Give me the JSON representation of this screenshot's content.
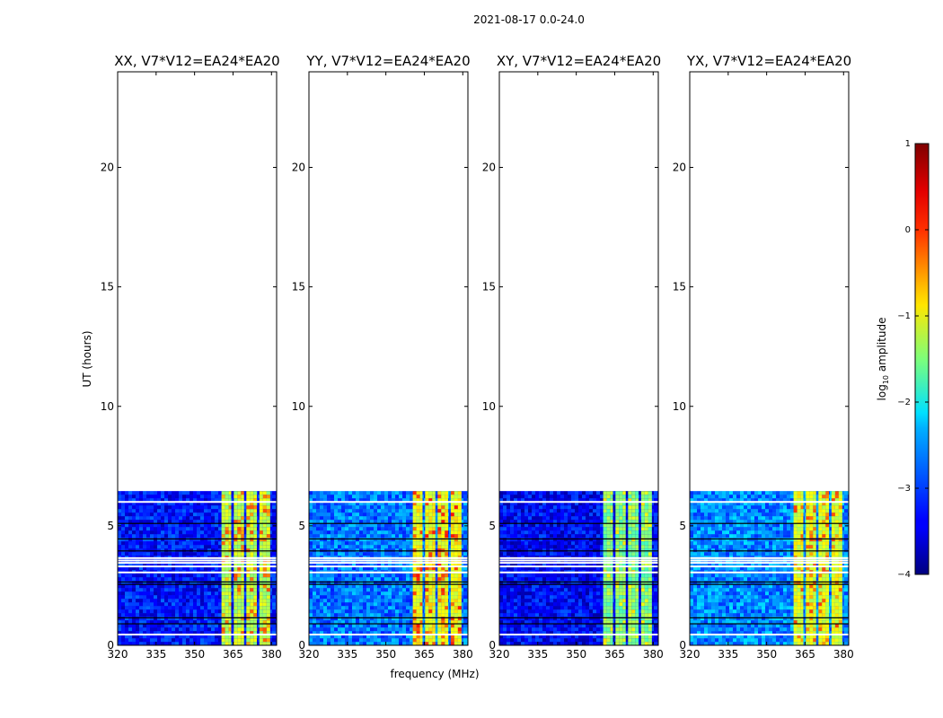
{
  "chart_data": {
    "type": "heatmap",
    "suptitle": "2021-08-17 0.0-24.0",
    "xlabel": "frequency (MHz)",
    "ylabel": "UT (hours)",
    "xlim": [
      320,
      382
    ],
    "ylim": [
      0,
      24
    ],
    "xticks": [
      320,
      335,
      350,
      365,
      380
    ],
    "yticks": [
      0,
      5,
      10,
      15,
      20
    ],
    "data_time_range": [
      0,
      6.45
    ],
    "bright_band_mhz": [
      360.5,
      379.5
    ],
    "bright_subbands_mhz": [
      [
        360.5,
        364.3
      ],
      [
        365.3,
        369.3
      ],
      [
        370.2,
        374.3
      ],
      [
        375.3,
        379.5
      ]
    ],
    "black_gap_times_hours": [
      0.9,
      1.15,
      2.55,
      2.65,
      3.95,
      4.45,
      5.1
    ],
    "white_gap_times_hours": [
      0.45,
      3.05,
      3.3,
      3.45,
      3.55,
      3.65,
      6.0
    ],
    "panels": [
      {
        "title": "XX, V7*V12=EA24*EA20",
        "background_log_amp": -3.3,
        "band_log_amp": -1.2,
        "band_peak_log_amp": -0.3
      },
      {
        "title": "YY, V7*V12=EA24*EA20",
        "background_log_amp": -2.8,
        "band_log_amp": -0.9,
        "band_peak_log_amp": 0.0
      },
      {
        "title": "XY, V7*V12=EA24*EA20",
        "background_log_amp": -3.4,
        "band_log_amp": -1.5,
        "band_peak_log_amp": -1.0
      },
      {
        "title": "YX, V7*V12=EA24*EA20",
        "background_log_amp": -2.7,
        "band_log_amp": -1.0,
        "band_peak_log_amp": -0.2
      }
    ],
    "colorbar": {
      "label_prefix": "log",
      "label_sub": "10",
      "label_suffix": " amplitude",
      "range": [
        -4,
        1
      ],
      "ticks": [
        "1",
        "0",
        "−1",
        "−2",
        "−3",
        "−4"
      ],
      "colormap": "jet"
    }
  }
}
